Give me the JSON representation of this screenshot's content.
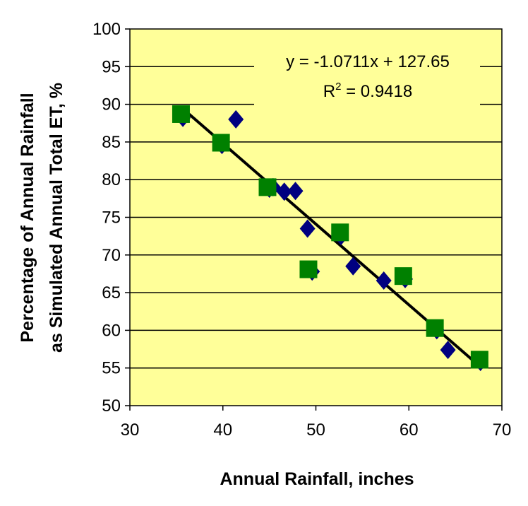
{
  "chart_data": {
    "type": "scatter",
    "title": "",
    "xlabel": "Annual Rainfall, inches",
    "ylabel_line1": "Percentage of Annual Rainfall",
    "ylabel_line2": "as Simulated Annual Total ET, %",
    "xlim": [
      30,
      70
    ],
    "ylim": [
      50,
      100
    ],
    "x_ticks": [
      30,
      40,
      50,
      60,
      70
    ],
    "y_ticks": [
      50,
      55,
      60,
      65,
      70,
      75,
      80,
      85,
      90,
      95,
      100
    ],
    "grid": "horizontal",
    "plot_background": "#ffff99",
    "series": [
      {
        "marker": "diamond",
        "color": "#000080",
        "points": [
          {
            "x": 35.7,
            "y": 88.2
          },
          {
            "x": 39.9,
            "y": 84.6
          },
          {
            "x": 41.4,
            "y": 88.0
          },
          {
            "x": 45.0,
            "y": 78.8
          },
          {
            "x": 45.4,
            "y": 79.0
          },
          {
            "x": 46.6,
            "y": 78.4
          },
          {
            "x": 47.8,
            "y": 78.5
          },
          {
            "x": 49.1,
            "y": 73.5
          },
          {
            "x": 49.6,
            "y": 67.8
          },
          {
            "x": 52.7,
            "y": 72.5
          },
          {
            "x": 54.0,
            "y": 68.5
          },
          {
            "x": 57.3,
            "y": 66.6
          },
          {
            "x": 59.6,
            "y": 66.8
          },
          {
            "x": 63.0,
            "y": 60.0
          },
          {
            "x": 64.2,
            "y": 57.4
          },
          {
            "x": 67.7,
            "y": 55.8
          }
        ]
      },
      {
        "marker": "square",
        "color": "#008000",
        "points": [
          {
            "x": 35.5,
            "y": 88.7
          },
          {
            "x": 39.8,
            "y": 84.9
          },
          {
            "x": 44.8,
            "y": 79.0
          },
          {
            "x": 49.2,
            "y": 68.1
          },
          {
            "x": 52.6,
            "y": 73.0
          },
          {
            "x": 59.4,
            "y": 67.2
          },
          {
            "x": 62.8,
            "y": 60.3
          },
          {
            "x": 67.6,
            "y": 56.1
          }
        ]
      }
    ],
    "trendline": {
      "slope": -1.0711,
      "intercept": 127.65,
      "x_start": 35.8,
      "x_end": 67.5,
      "color": "#000000",
      "equation": "y = -1.0711x + 127.65",
      "r2_prefix": "R",
      "r2_superscript": "2",
      "r2_suffix": " = 0.9418"
    }
  }
}
